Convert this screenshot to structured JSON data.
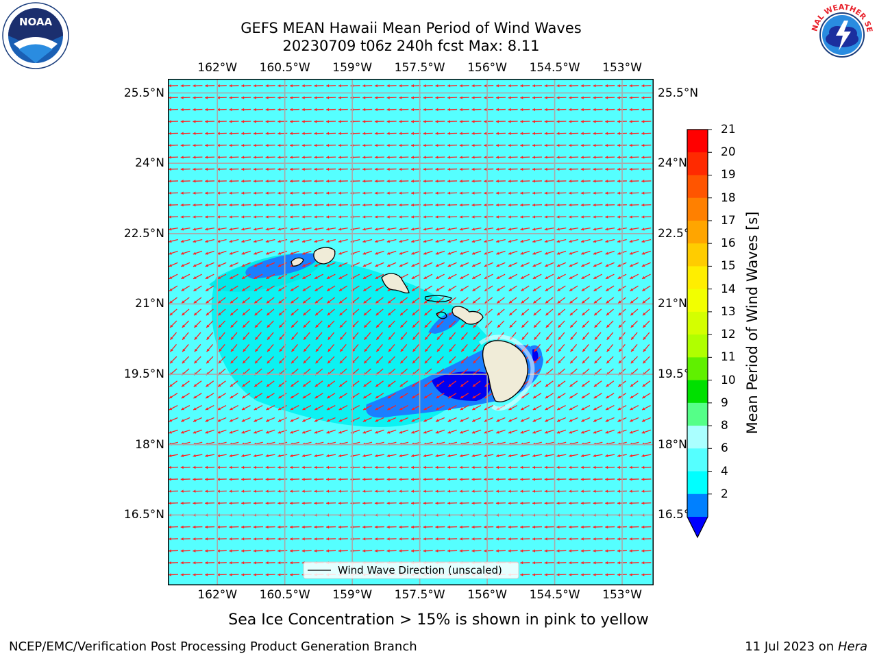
{
  "title": {
    "line1": "GEFS MEAN Hawaii Mean Period of Wind Waves",
    "line2": "20230709 t06z 240h fcst   Max: 8.11"
  },
  "map": {
    "lon_range": [
      -163.1,
      -152.3
    ],
    "lat_range": [
      15.0,
      25.8
    ],
    "ocean_color": "#55ffff",
    "arrow_color": "#ff2020",
    "lon_ticks": [
      "162°W",
      "160.5°W",
      "159°W",
      "157.5°W",
      "156°W",
      "154.5°W",
      "153°W"
    ],
    "lon_tick_values": [
      -162,
      -160.5,
      -159,
      -157.5,
      -156,
      -154.5,
      -153
    ],
    "lat_ticks": [
      "25.5°N",
      "24°N",
      "22.5°N",
      "21°N",
      "19.5°N",
      "18°N",
      "16.5°N"
    ],
    "lat_tick_values": [
      25.5,
      24,
      22.5,
      21,
      19.5,
      18,
      16.5
    ],
    "legend_label": "Wind Wave Direction (unscaled)",
    "islands": [
      {
        "name": "Kauai",
        "center": [
          -159.5,
          22.05
        ]
      },
      {
        "name": "Niihau",
        "center": [
          -160.15,
          21.9
        ]
      },
      {
        "name": "Oahu",
        "center": [
          -158.0,
          21.45
        ]
      },
      {
        "name": "Molokai",
        "center": [
          -157.0,
          21.15
        ]
      },
      {
        "name": "Maui",
        "center": [
          -156.3,
          20.8
        ]
      },
      {
        "name": "Lanai",
        "center": [
          -156.92,
          20.82
        ]
      },
      {
        "name": "Hawaii",
        "center": [
          -155.5,
          19.6
        ]
      }
    ]
  },
  "colorbar": {
    "label": "Mean Period of Wind Waves [s]",
    "ticks": [
      "21",
      "20",
      "19",
      "18",
      "17",
      "16",
      "15",
      "14",
      "13",
      "12",
      "11",
      "10",
      "9",
      "8",
      "6",
      "4",
      "2"
    ],
    "colors": [
      "#ff0000",
      "#ff2a00",
      "#ff5500",
      "#ff8000",
      "#ffa500",
      "#ffcc00",
      "#ffee00",
      "#f2ff00",
      "#d4ff00",
      "#b0ff00",
      "#60f000",
      "#00e000",
      "#55ff88",
      "#aaffff",
      "#55ffff",
      "#00ffff",
      "#0080ff",
      "#0000ff"
    ]
  },
  "footer": {
    "note": "Sea Ice Concentration > 15% is shown in pink to yellow",
    "left": "NCEP/EMC/Verification Post Processing Product Generation Branch",
    "right_date": "11 Jul 2023 on ",
    "right_host": "Hera"
  },
  "logos": {
    "noaa": "NOAA",
    "nws": "NATIONAL WEATHER SERVICE"
  }
}
